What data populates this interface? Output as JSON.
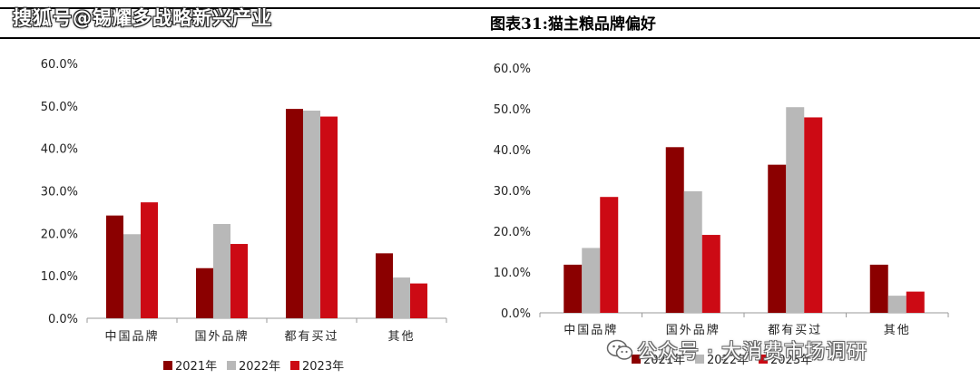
{
  "header": {
    "watermark": "搜狐号@锡耀多战略新兴产业",
    "figure_title": "图表31:猫主粮品牌偏好"
  },
  "bottom_watermark": {
    "icon": "wechat-icon",
    "text": "公众号 · 大消费市场调研"
  },
  "colors": {
    "2021年": "#8b0000",
    "2022年": "#b8b8b8",
    "2023年": "#cc0a14"
  },
  "chart_data": [
    {
      "type": "bar",
      "title": "",
      "xlabel": "",
      "ylabel": "",
      "categories": [
        "中国品牌",
        "国外品牌",
        "都有买过",
        "其他"
      ],
      "series": [
        {
          "name": "2021年",
          "values": [
            24.2,
            11.8,
            49.3,
            15.3
          ]
        },
        {
          "name": "2022年",
          "values": [
            19.8,
            22.2,
            48.9,
            9.6
          ]
        },
        {
          "name": "2023年",
          "values": [
            27.3,
            17.5,
            47.5,
            8.2
          ]
        }
      ],
      "ylim": [
        0,
        60
      ],
      "yticks": [
        "0.0%",
        "10.0%",
        "20.0%",
        "30.0%",
        "40.0%",
        "50.0%",
        "60.0%"
      ],
      "grid": false,
      "legend_position": "bottom"
    },
    {
      "type": "bar",
      "title": "",
      "xlabel": "",
      "ylabel": "",
      "categories": [
        "中国品牌",
        "国外品牌",
        "都有买过",
        "其他"
      ],
      "series": [
        {
          "name": "2021年",
          "values": [
            11.8,
            40.6,
            36.3,
            11.8
          ]
        },
        {
          "name": "2022年",
          "values": [
            15.9,
            29.8,
            50.4,
            4.2
          ]
        },
        {
          "name": "2023年",
          "values": [
            28.4,
            19.1,
            47.9,
            5.2
          ]
        }
      ],
      "ylim": [
        0,
        60
      ],
      "yticks": [
        "0.0%",
        "10.0%",
        "20.0%",
        "30.0%",
        "40.0%",
        "50.0%",
        "60.0%"
      ],
      "grid": false,
      "legend_position": "bottom"
    }
  ]
}
